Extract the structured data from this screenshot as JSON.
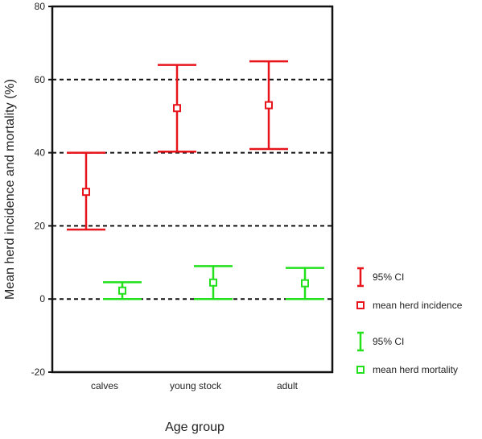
{
  "chart_data": {
    "type": "scatter",
    "xlabel": "Age group",
    "ylabel": "Mean herd incidence and mortality (%)",
    "categories": [
      "calves",
      "young stock",
      "adult"
    ],
    "ylim": [
      -20,
      80
    ],
    "yticks": [
      -20,
      0,
      20,
      40,
      60,
      80
    ],
    "gridlines": [
      0,
      20,
      40,
      60
    ],
    "grid": "horizontal dashed",
    "legend_position": "right",
    "series": [
      {
        "name": "mean herd incidence",
        "ci_name": "95% CI",
        "color": "#e8141c",
        "means": [
          29.3,
          52.2,
          53.0
        ],
        "ci_lower": [
          19.0,
          40.3,
          41.0
        ],
        "ci_upper": [
          40.0,
          64.0,
          65.0
        ]
      },
      {
        "name": "mean herd mortality",
        "ci_name": "95% CI",
        "color": "#22e01c",
        "means": [
          2.3,
          4.5,
          4.3
        ],
        "ci_lower": [
          0.0,
          0.0,
          0.0
        ],
        "ci_upper": [
          4.6,
          9.0,
          8.5
        ]
      }
    ]
  }
}
